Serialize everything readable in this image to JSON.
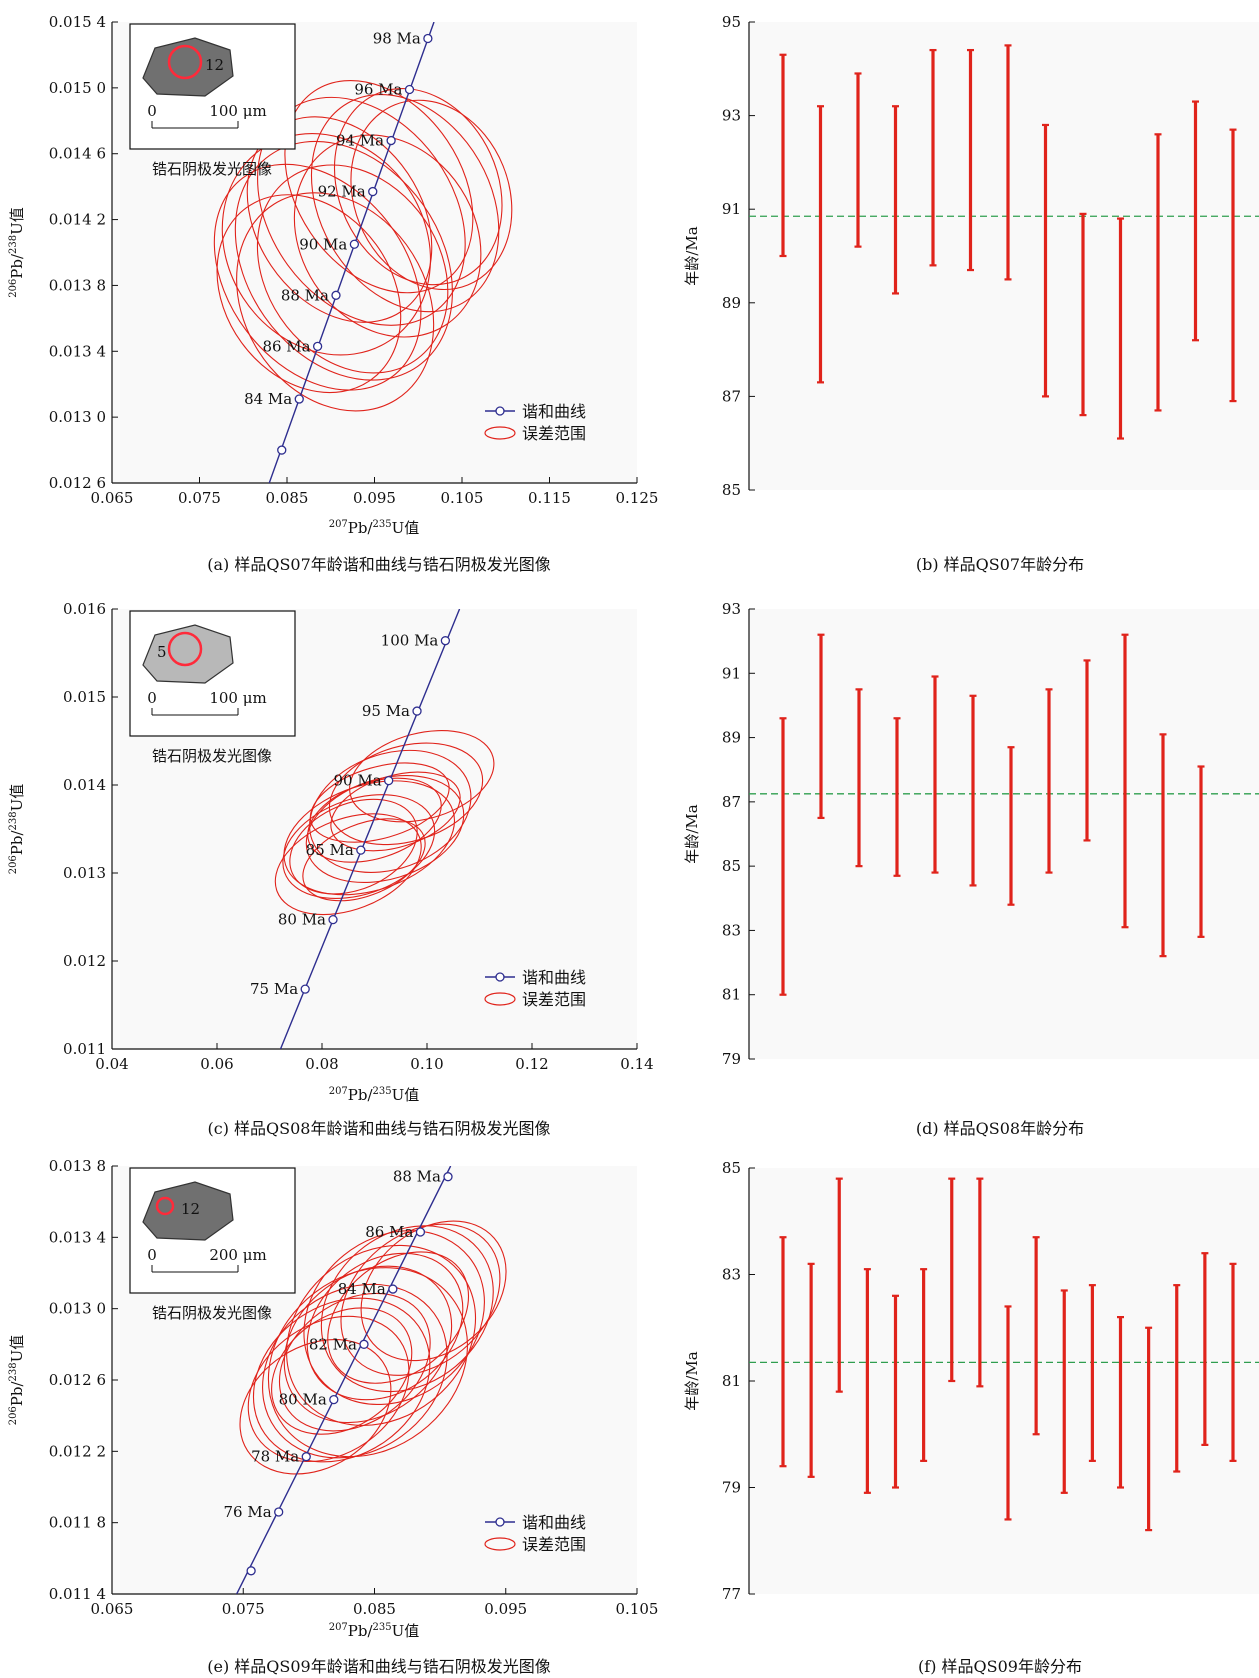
{
  "chart_data": [
    {
      "panel": "a",
      "type": "scatter",
      "caption": "(a)  样品QS07年龄谐和曲线与锆石阴极发光图像",
      "xlabel": "207Pb/235U值",
      "ylabel": "206Pb/238U值",
      "xlim": [
        0.065,
        0.125
      ],
      "ylim": [
        0.0126,
        0.0154
      ],
      "xticks": [
        0.065,
        0.075,
        0.085,
        0.095,
        0.105,
        0.115,
        0.125
      ],
      "xtick_labels": [
        "0.065",
        "0.075",
        "0.085",
        "0.095",
        "0.105",
        "0.115",
        "0.125"
      ],
      "yticks": [
        0.0126,
        0.013,
        0.0134,
        0.0138,
        0.0142,
        0.0146,
        0.015,
        0.0154
      ],
      "ytick_labels": [
        "0.012 6",
        "0.013 0",
        "0.013 4",
        "0.013 8",
        "0.014 2",
        "0.014 6",
        "0.015 0",
        "0.015 4"
      ],
      "concordia": [
        {
          "age": 82,
          "x": 0.0844,
          "y": 0.0128,
          "label": ""
        },
        {
          "age": 84,
          "x": 0.0864,
          "y": 0.01311,
          "label": "84 Ma"
        },
        {
          "age": 86,
          "x": 0.0885,
          "y": 0.01343,
          "label": "86 Ma"
        },
        {
          "age": 88,
          "x": 0.0906,
          "y": 0.01374,
          "label": "88 Ma"
        },
        {
          "age": 90,
          "x": 0.0927,
          "y": 0.01405,
          "label": "90 Ma"
        },
        {
          "age": 92,
          "x": 0.0948,
          "y": 0.01437,
          "label": "92 Ma"
        },
        {
          "age": 94,
          "x": 0.0969,
          "y": 0.01468,
          "label": "94 Ma"
        },
        {
          "age": 96,
          "x": 0.099,
          "y": 0.01499,
          "label": "96 Ma"
        },
        {
          "age": 98,
          "x": 0.1011,
          "y": 0.0153,
          "label": "98 Ma"
        }
      ],
      "concordia_line": {
        "x0": 0.0825,
        "y0": 0.01253,
        "x1": 0.1018,
        "y1": 0.0154
      },
      "ellipses": [
        {
          "cx": 0.0895,
          "cy": 0.01405,
          "rx": 0.016,
          "ry": 0.0024,
          "angle": -33
        },
        {
          "cx": 0.0935,
          "cy": 0.01425,
          "rx": 0.014,
          "ry": 0.0026,
          "angle": -36
        },
        {
          "cx": 0.0925,
          "cy": 0.0139,
          "rx": 0.013,
          "ry": 0.0023,
          "angle": -34
        },
        {
          "cx": 0.0915,
          "cy": 0.01395,
          "rx": 0.0155,
          "ry": 0.0027,
          "angle": -35
        },
        {
          "cx": 0.0905,
          "cy": 0.0137,
          "rx": 0.014,
          "ry": 0.0024,
          "angle": -32
        },
        {
          "cx": 0.0965,
          "cy": 0.0141,
          "rx": 0.013,
          "ry": 0.0022,
          "angle": -33
        },
        {
          "cx": 0.0985,
          "cy": 0.0143,
          "rx": 0.0125,
          "ry": 0.0024,
          "angle": -30
        },
        {
          "cx": 0.1,
          "cy": 0.0144,
          "rx": 0.011,
          "ry": 0.0021,
          "angle": -25
        },
        {
          "cx": 0.1015,
          "cy": 0.01435,
          "rx": 0.0105,
          "ry": 0.002,
          "angle": -22
        },
        {
          "cx": 0.0875,
          "cy": 0.01375,
          "rx": 0.012,
          "ry": 0.0022,
          "angle": -36
        },
        {
          "cx": 0.091,
          "cy": 0.0142,
          "rx": 0.0118,
          "ry": 0.0023,
          "angle": -34
        },
        {
          "cx": 0.0885,
          "cy": 0.01385,
          "rx": 0.0135,
          "ry": 0.0026,
          "angle": -37
        },
        {
          "cx": 0.0955,
          "cy": 0.0144,
          "rx": 0.0118,
          "ry": 0.0024,
          "angle": -34
        }
      ],
      "legend": {
        "concordia": "谐和曲线",
        "error": "误差范围"
      },
      "inset": {
        "title": "锆石阴极发光图像",
        "spot": "12",
        "scale_start": "0",
        "scale_end": "100 μm"
      }
    },
    {
      "panel": "b",
      "type": "errorbar",
      "caption": "(b)  样品QS07年龄分布",
      "ylabel": "年龄/Ma",
      "ylim": [
        85,
        95
      ],
      "yticks": [
        85,
        87,
        89,
        91,
        93,
        95
      ],
      "ytick_labels": [
        "85",
        "87",
        "89",
        "91",
        "93",
        "95"
      ],
      "mean": 90.85,
      "bars": [
        {
          "low": 90.0,
          "high": 94.3
        },
        {
          "low": 87.3,
          "high": 93.2
        },
        {
          "low": 90.2,
          "high": 93.9
        },
        {
          "low": 89.2,
          "high": 93.2
        },
        {
          "low": 89.8,
          "high": 94.4
        },
        {
          "low": 89.7,
          "high": 94.4
        },
        {
          "low": 89.5,
          "high": 94.5
        },
        {
          "low": 87.0,
          "high": 92.8
        },
        {
          "low": 86.6,
          "high": 90.9
        },
        {
          "low": 86.1,
          "high": 90.8
        },
        {
          "low": 86.7,
          "high": 92.6
        },
        {
          "low": 88.2,
          "high": 93.3
        },
        {
          "low": 86.9,
          "high": 92.7
        }
      ]
    },
    {
      "panel": "c",
      "type": "scatter",
      "caption": "(c)  样品QS08年龄谐和曲线与锆石阴极发光图像",
      "xlabel": "207Pb/235U值",
      "ylabel": "206Pb/238U值",
      "xlim": [
        0.04,
        0.14
      ],
      "ylim": [
        0.011,
        0.016
      ],
      "xticks": [
        0.04,
        0.06,
        0.08,
        0.1,
        0.12,
        0.14
      ],
      "xtick_labels": [
        "0.04",
        "0.06",
        "0.08",
        "0.10",
        "0.12",
        "0.14"
      ],
      "yticks": [
        0.011,
        0.012,
        0.013,
        0.014,
        0.015,
        0.016
      ],
      "ytick_labels": [
        "0.011",
        "0.012",
        "0.013",
        "0.014",
        "0.015",
        "0.016"
      ],
      "concordia": [
        {
          "age": 75,
          "x": 0.0768,
          "y": 0.01168,
          "label": "75 Ma"
        },
        {
          "age": 80,
          "x": 0.0821,
          "y": 0.01247,
          "label": "80 Ma"
        },
        {
          "age": 85,
          "x": 0.0874,
          "y": 0.01326,
          "label": "85 Ma"
        },
        {
          "age": 90,
          "x": 0.0927,
          "y": 0.01405,
          "label": "90 Ma"
        },
        {
          "age": 95,
          "x": 0.0981,
          "y": 0.01484,
          "label": "95 Ma"
        },
        {
          "age": 100,
          "x": 0.1035,
          "y": 0.01564,
          "label": "100 Ma"
        }
      ],
      "concordia_line": {
        "x0": 0.0721,
        "y0": 0.011,
        "x1": 0.1062,
        "y1": 0.016
      },
      "ellipses": [
        {
          "cx": 0.089,
          "cy": 0.0134,
          "rx": 0.022,
          "ry": 0.0019,
          "angle": -18
        },
        {
          "cx": 0.093,
          "cy": 0.0137,
          "rx": 0.02,
          "ry": 0.0021,
          "angle": -20
        },
        {
          "cx": 0.087,
          "cy": 0.0133,
          "rx": 0.018,
          "ry": 0.0017,
          "angle": -19
        },
        {
          "cx": 0.092,
          "cy": 0.0135,
          "rx": 0.019,
          "ry": 0.0018,
          "angle": -17
        },
        {
          "cx": 0.085,
          "cy": 0.0131,
          "rx": 0.017,
          "ry": 0.0016,
          "angle": -21
        },
        {
          "cx": 0.096,
          "cy": 0.0139,
          "rx": 0.018,
          "ry": 0.0017,
          "angle": -16
        },
        {
          "cx": 0.099,
          "cy": 0.0141,
          "rx": 0.016,
          "ry": 0.0015,
          "angle": -15
        },
        {
          "cx": 0.09,
          "cy": 0.0136,
          "rx": 0.014,
          "ry": 0.0013,
          "angle": -18
        },
        {
          "cx": 0.088,
          "cy": 0.01315,
          "rx": 0.012,
          "ry": 0.0012,
          "angle": -22
        },
        {
          "cx": 0.094,
          "cy": 0.0137,
          "rx": 0.013,
          "ry": 0.0012,
          "angle": -17
        },
        {
          "cx": 0.086,
          "cy": 0.0133,
          "rx": 0.013,
          "ry": 0.0015,
          "angle": -23
        },
        {
          "cx": 0.091,
          "cy": 0.0138,
          "rx": 0.015,
          "ry": 0.0012,
          "angle": -16
        }
      ],
      "legend": {
        "concordia": "谐和曲线",
        "error": "误差范围"
      },
      "inset": {
        "title": "锆石阴极发光图像",
        "spot": "5",
        "scale_start": "0",
        "scale_end": "100 μm"
      }
    },
    {
      "panel": "d",
      "type": "errorbar",
      "caption": "(d)  样品QS08年龄分布",
      "ylabel": "年龄/Ma",
      "ylim": [
        79,
        93
      ],
      "yticks": [
        79,
        81,
        83,
        85,
        87,
        89,
        91,
        93
      ],
      "ytick_labels": [
        "79",
        "81",
        "83",
        "85",
        "87",
        "89",
        "91",
        "93"
      ],
      "mean": 87.25,
      "bars": [
        {
          "low": 81.0,
          "high": 89.6
        },
        {
          "low": 86.5,
          "high": 92.2
        },
        {
          "low": 85.0,
          "high": 90.5
        },
        {
          "low": 84.7,
          "high": 89.6
        },
        {
          "low": 84.8,
          "high": 90.9
        },
        {
          "low": 84.4,
          "high": 90.3
        },
        {
          "low": 83.8,
          "high": 88.7
        },
        {
          "low": 84.8,
          "high": 90.5
        },
        {
          "low": 85.8,
          "high": 91.4
        },
        {
          "low": 83.1,
          "high": 92.2
        },
        {
          "low": 82.2,
          "high": 89.1
        },
        {
          "low": 82.8,
          "high": 88.1
        }
      ]
    },
    {
      "panel": "e",
      "type": "scatter",
      "caption": "(e)  样品QS09年龄谐和曲线与锆石阴极发光图像",
      "xlabel": "207Pb/235U值",
      "ylabel": "206Pb/238U值",
      "xlim": [
        0.065,
        0.105
      ],
      "ylim": [
        0.0114,
        0.0138
      ],
      "xticks": [
        0.065,
        0.075,
        0.085,
        0.095,
        0.105
      ],
      "xtick_labels": [
        "0.065",
        "0.075",
        "0.085",
        "0.095",
        "0.105"
      ],
      "yticks": [
        0.0114,
        0.0118,
        0.0122,
        0.0126,
        0.013,
        0.0134,
        0.0138
      ],
      "ytick_labels": [
        "0.011 4",
        "0.011 8",
        "0.012 2",
        "0.012 6",
        "0.013 0",
        "0.013 4",
        "0.013 8"
      ],
      "concordia": [
        {
          "age": 74,
          "x": 0.0756,
          "y": 0.01153,
          "label": ""
        },
        {
          "age": 76,
          "x": 0.0777,
          "y": 0.01186,
          "label": "76 Ma"
        },
        {
          "age": 78,
          "x": 0.0798,
          "y": 0.01217,
          "label": "78 Ma"
        },
        {
          "age": 80,
          "x": 0.0819,
          "y": 0.01249,
          "label": "80 Ma"
        },
        {
          "age": 82,
          "x": 0.0842,
          "y": 0.0128,
          "label": "82 Ma"
        },
        {
          "age": 84,
          "x": 0.0864,
          "y": 0.01311,
          "label": "84 Ma"
        },
        {
          "age": 86,
          "x": 0.0885,
          "y": 0.01343,
          "label": "86 Ma"
        },
        {
          "age": 88,
          "x": 0.0906,
          "y": 0.01374,
          "label": "88 Ma"
        }
      ],
      "concordia_line": {
        "x0": 0.0745,
        "y0": 0.0114,
        "x1": 0.0908,
        "y1": 0.0138
      },
      "ellipses": [
        {
          "cx": 0.0845,
          "cy": 0.0127,
          "rx": 0.0118,
          "ry": 0.00165,
          "angle": -37
        },
        {
          "cx": 0.0855,
          "cy": 0.01285,
          "rx": 0.011,
          "ry": 0.00155,
          "angle": -38
        },
        {
          "cx": 0.0835,
          "cy": 0.01265,
          "rx": 0.0105,
          "ry": 0.0015,
          "angle": -36
        },
        {
          "cx": 0.0865,
          "cy": 0.01295,
          "rx": 0.0102,
          "ry": 0.0015,
          "angle": -39
        },
        {
          "cx": 0.0825,
          "cy": 0.0126,
          "rx": 0.0098,
          "ry": 0.0014,
          "angle": -35
        },
        {
          "cx": 0.0875,
          "cy": 0.013,
          "rx": 0.0096,
          "ry": 0.0014,
          "angle": -40
        },
        {
          "cx": 0.0845,
          "cy": 0.0128,
          "rx": 0.0092,
          "ry": 0.0013,
          "angle": -37
        },
        {
          "cx": 0.0815,
          "cy": 0.01255,
          "rx": 0.0085,
          "ry": 0.0012,
          "angle": -34
        },
        {
          "cx": 0.0885,
          "cy": 0.01305,
          "rx": 0.0088,
          "ry": 0.0012,
          "angle": -40
        },
        {
          "cx": 0.0835,
          "cy": 0.0127,
          "rx": 0.0078,
          "ry": 0.0011,
          "angle": -36
        },
        {
          "cx": 0.0858,
          "cy": 0.0129,
          "rx": 0.0082,
          "ry": 0.0012,
          "angle": -38
        },
        {
          "cx": 0.0805,
          "cy": 0.01245,
          "rx": 0.0076,
          "ry": 0.0011,
          "angle": -33
        },
        {
          "cx": 0.0895,
          "cy": 0.0131,
          "rx": 0.0075,
          "ry": 0.0011,
          "angle": -41
        },
        {
          "cx": 0.0868,
          "cy": 0.01295,
          "rx": 0.0072,
          "ry": 0.001,
          "angle": -39
        },
        {
          "cx": 0.0825,
          "cy": 0.01265,
          "rx": 0.0068,
          "ry": 0.001,
          "angle": -35
        }
      ],
      "legend": {
        "concordia": "谐和曲线",
        "error": "误差范围"
      },
      "inset": {
        "title": "锆石阴极发光图像",
        "spot": "12",
        "scale_start": "0",
        "scale_end": "200 μm"
      }
    },
    {
      "panel": "f",
      "type": "errorbar",
      "caption": "(f)  样品QS09年龄分布",
      "ylabel": "年龄/Ma",
      "ylim": [
        77,
        85
      ],
      "yticks": [
        77,
        79,
        81,
        83,
        85
      ],
      "ytick_labels": [
        "77",
        "79",
        "81",
        "83",
        "85"
      ],
      "mean": 81.35,
      "bars": [
        {
          "low": 79.4,
          "high": 83.7
        },
        {
          "low": 79.2,
          "high": 83.2
        },
        {
          "low": 80.8,
          "high": 84.8
        },
        {
          "low": 78.9,
          "high": 83.1
        },
        {
          "low": 79.0,
          "high": 82.6
        },
        {
          "low": 79.5,
          "high": 83.1
        },
        {
          "low": 81.0,
          "high": 84.8
        },
        {
          "low": 80.9,
          "high": 84.8
        },
        {
          "low": 78.4,
          "high": 82.4
        },
        {
          "low": 80.0,
          "high": 83.7
        },
        {
          "low": 78.9,
          "high": 82.7
        },
        {
          "low": 79.5,
          "high": 82.8
        },
        {
          "low": 79.0,
          "high": 82.2
        },
        {
          "low": 78.2,
          "high": 82.0
        },
        {
          "low": 79.3,
          "high": 82.8
        },
        {
          "low": 79.8,
          "high": 83.4
        },
        {
          "low": 79.5,
          "high": 83.2
        }
      ]
    }
  ],
  "colors": {
    "concordia": "#2e2e8f",
    "ellipse": "#e0231b",
    "errorbar": "#e0231b",
    "mean_line": "#2f9e4f",
    "axis": "#111111"
  }
}
